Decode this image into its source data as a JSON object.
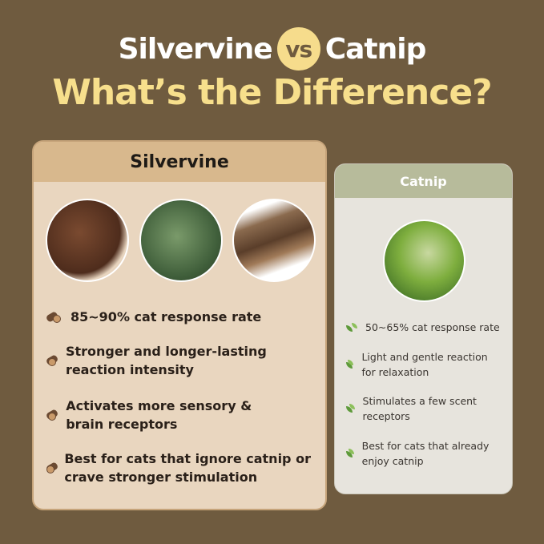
{
  "title": {
    "left": "Silvervine",
    "vs": "vs",
    "right": "Catnip",
    "subtitle": "What’s the Difference?"
  },
  "colors": {
    "background": "#6f5b3f",
    "accent": "#f6dc8c",
    "silvervine_header": "#d8b88d",
    "catnip_header": "#b7bb9b"
  },
  "silvervine": {
    "header": "Silvervine",
    "images": [
      "dried-silvervine-gall",
      "silvervine-leaves",
      "silvervine-sticks"
    ],
    "icon": "wood-log-icon",
    "bullets": [
      "85~90% cat response rate",
      "Stronger and longer-lasting reaction intensity",
      "Activates more sensory & brain receptors",
      "Best for cats that ignore catnip or crave stronger stimulation"
    ]
  },
  "catnip": {
    "header": "Catnip",
    "images": [
      "catnip-plant"
    ],
    "icon": "leaf-icon",
    "bullets": [
      "50~65% cat response rate",
      "Light and gentle reaction for relaxation",
      "Stimulates a few scent receptors",
      "Best for cats that already enjoy catnip"
    ]
  }
}
